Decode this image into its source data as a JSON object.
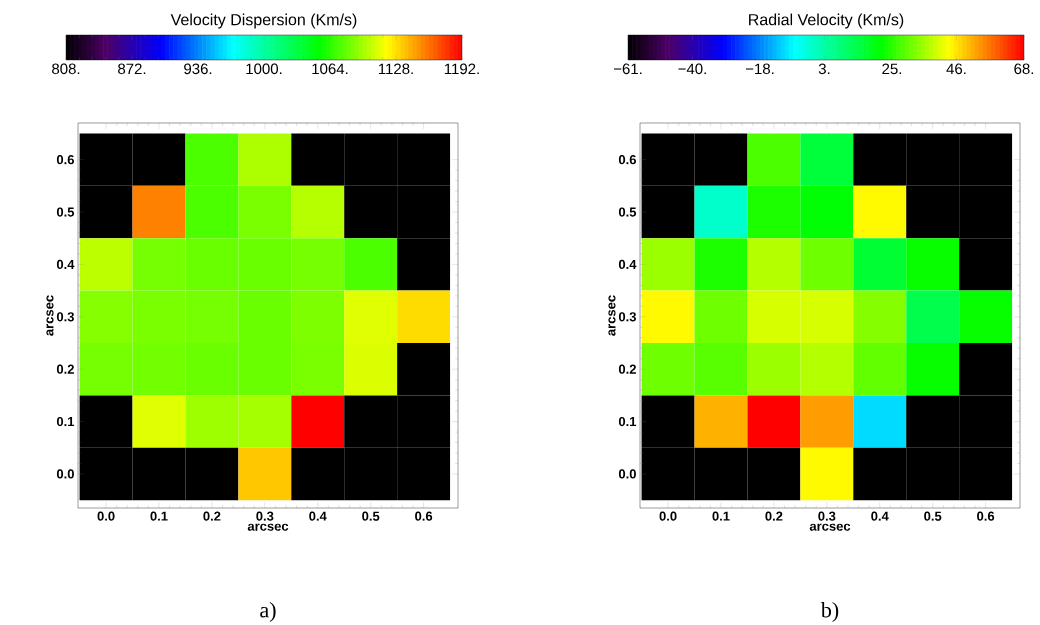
{
  "chart_data": [
    {
      "type": "heatmap",
      "clabel": "Velocity Dispersion (Km/s)",
      "xlabel": "arcsec",
      "ylabel": "arcsec",
      "categories": [
        "0.0",
        "0.1",
        "0.2",
        "0.3",
        "0.4",
        "0.5",
        "0.6"
      ],
      "y_categories": [
        "0.6",
        "0.5",
        "0.4",
        "0.3",
        "0.2",
        "0.1",
        "0.0"
      ],
      "cells": [
        [
          null,
          null,
          1073,
          1098,
          null,
          null,
          null
        ],
        [
          null,
          1155,
          1073,
          1085,
          1100,
          null,
          null
        ],
        [
          1102,
          1084,
          1081,
          1081,
          1084,
          1073,
          null
        ],
        [
          1088,
          1085,
          1084,
          1081,
          1086,
          1111,
          1129
        ],
        [
          1084,
          1083,
          1081,
          1081,
          1085,
          1110,
          null
        ],
        [
          null,
          1111,
          1094,
          1096,
          1192,
          null,
          null
        ],
        [
          null,
          null,
          null,
          1135,
          null,
          null,
          null
        ]
      ],
      "clim": [
        808,
        1192
      ],
      "cticks": [
        {
          "value": 808,
          "label": "808."
        },
        {
          "value": 872,
          "label": "872."
        },
        {
          "value": 936,
          "label": "936."
        },
        {
          "value": 1000,
          "label": "1000."
        },
        {
          "value": 1064,
          "label": "1064."
        },
        {
          "value": 1128,
          "label": "1128."
        },
        {
          "value": 1192,
          "label": "1192."
        }
      ],
      "annotations": [
        "a)"
      ]
    },
    {
      "type": "heatmap",
      "clabel": "Radial Velocity (Km/s)",
      "xlabel": "arcsec",
      "ylabel": "arcsec",
      "categories": [
        "0.0",
        "0.1",
        "0.2",
        "0.3",
        "0.4",
        "0.5",
        "0.6"
      ],
      "y_categories": [
        "0.6",
        "0.5",
        "0.4",
        "0.3",
        "0.2",
        "0.1",
        "0.0"
      ],
      "cells": [
        [
          null,
          null,
          28,
          15,
          null,
          null,
          null
        ],
        [
          null,
          -1,
          24,
          21,
          44,
          null,
          null
        ],
        [
          35,
          24,
          37,
          31,
          16,
          22,
          null
        ],
        [
          44,
          31,
          40,
          40,
          33,
          13,
          22
        ],
        [
          31,
          29,
          35,
          37,
          30,
          22,
          null
        ],
        [
          null,
          51,
          68,
          53,
          -10,
          null,
          null
        ],
        [
          null,
          null,
          null,
          44,
          null,
          null,
          null
        ]
      ],
      "clim": [
        -61,
        68
      ],
      "cticks": [
        {
          "value": -61,
          "label": "−61."
        },
        {
          "value": -40,
          "label": "−40."
        },
        {
          "value": -18,
          "label": "−18."
        },
        {
          "value": 3,
          "label": "3."
        },
        {
          "value": 25,
          "label": "25."
        },
        {
          "value": 46,
          "label": "46."
        },
        {
          "value": 68,
          "label": "68."
        }
      ],
      "annotations": [
        "b)"
      ]
    }
  ]
}
